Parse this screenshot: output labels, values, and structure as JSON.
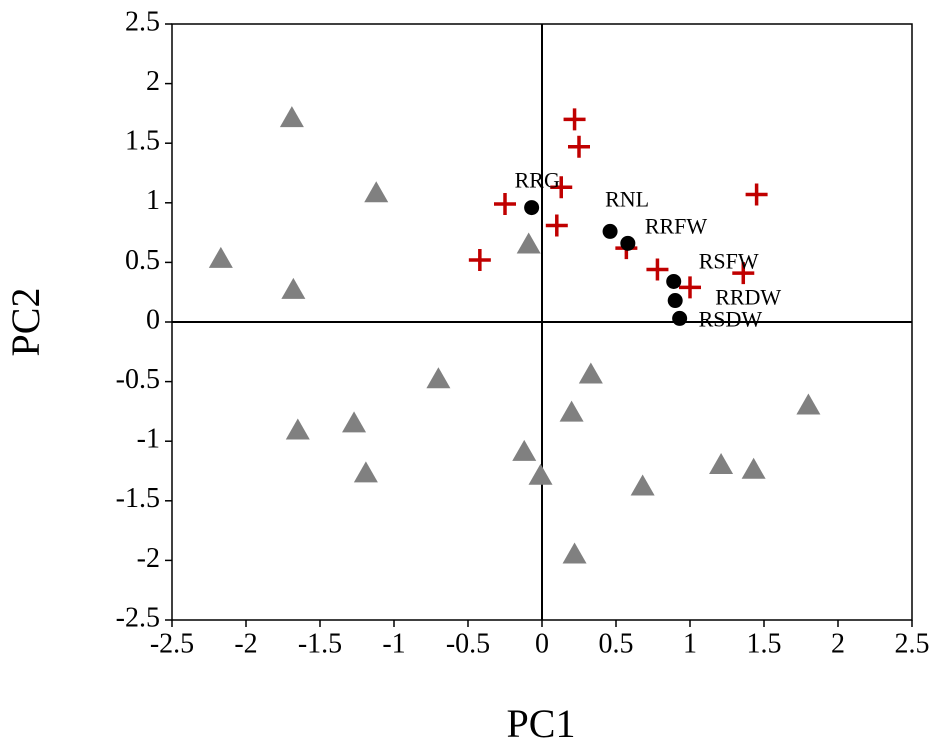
{
  "chart_data": {
    "type": "scatter",
    "xlabel": "PC1",
    "ylabel": "PC2",
    "xlim": [
      -2.5,
      2.5
    ],
    "ylim": [
      -2.5,
      2.5
    ],
    "xticks": [
      -2.5,
      -2,
      -1.5,
      -1,
      -0.5,
      0,
      0.5,
      1,
      1.5,
      2,
      2.5
    ],
    "yticks": [
      -2.5,
      -2,
      -1.5,
      -1,
      -0.5,
      0,
      0.5,
      1,
      1.5,
      2,
      2.5
    ],
    "series": [
      {
        "marker": "triangle",
        "color": "#808080",
        "x": [
          -1.69,
          -1.12,
          -2.17,
          -1.68,
          -0.09,
          -0.7,
          0.33,
          -1.65,
          -1.27,
          -1.19,
          -0.12,
          -0.01,
          0.2,
          0.68,
          1.21,
          1.43,
          1.8,
          0.22
        ],
        "values": [
          1.71,
          1.08,
          0.53,
          0.27,
          0.65,
          -0.48,
          -0.44,
          -0.91,
          -0.85,
          -1.27,
          -1.09,
          -1.29,
          -0.76,
          -1.38,
          -1.2,
          -1.24,
          -0.7,
          -1.95
        ]
      },
      {
        "marker": "plus",
        "color": "#c00000",
        "x": [
          0.22,
          0.25,
          0.13,
          -0.25,
          0.1,
          -0.42,
          0.57,
          0.78,
          1.0,
          1.36,
          1.45
        ],
        "values": [
          1.7,
          1.47,
          1.13,
          0.99,
          0.81,
          0.52,
          0.62,
          0.44,
          0.29,
          0.41,
          1.07
        ]
      },
      {
        "marker": "circle",
        "color": "#000000",
        "x": [
          -0.07,
          0.46,
          0.58,
          0.89,
          0.9,
          0.93
        ],
        "values": [
          0.96,
          0.76,
          0.66,
          0.34,
          0.18,
          0.03
        ],
        "point_labels": [
          "RRG",
          "RNL",
          "RRFW",
          "RSFW",
          "RRDW",
          "RSDW"
        ]
      }
    ]
  }
}
